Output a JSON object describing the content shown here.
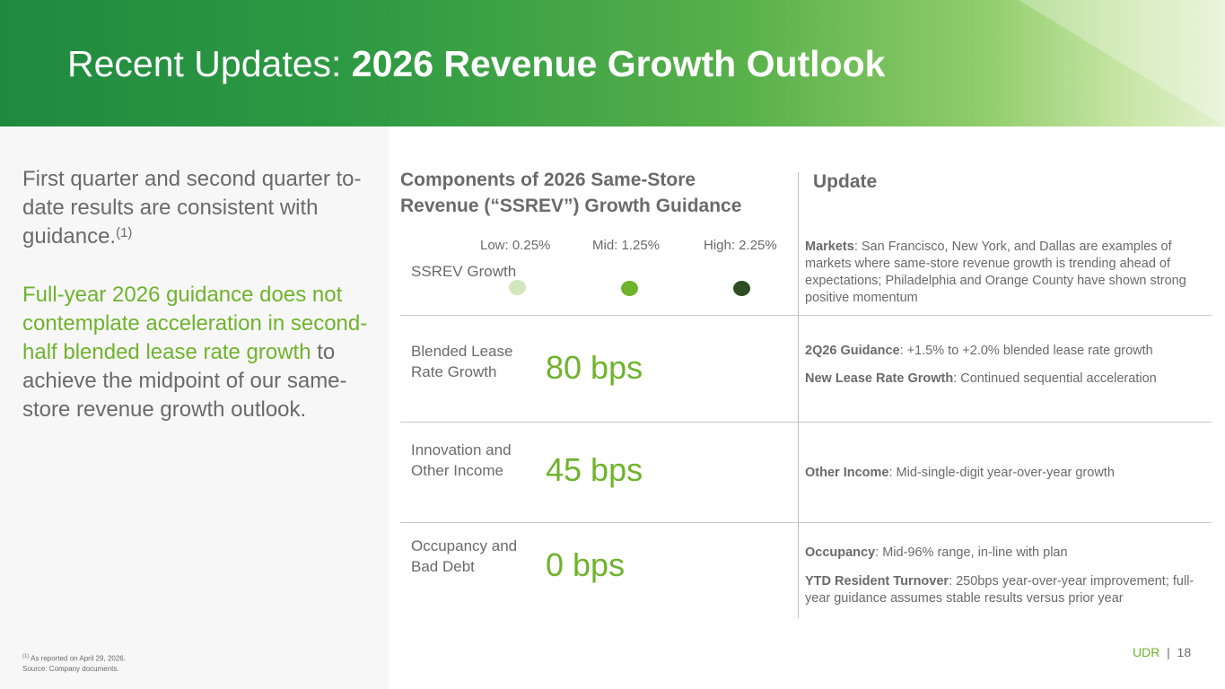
{
  "header": {
    "title_prefix": "Recent Updates: ",
    "title_bold": "2026 Revenue Growth Outlook"
  },
  "left": {
    "intro": "First quarter and second quarter to-date results are consistent with guidance.",
    "intro_note": "(1)",
    "highlight": "Full-year 2026 guidance does not contemplate acceleration in second-half blended lease rate growth",
    "rest": " to achieve the midpoint of our same-store revenue growth outlook.",
    "footnote_marker": "(1)",
    "footnote_line1": " As reported on April 29, 2026.",
    "footnote_line2": "Source: Company documents."
  },
  "table": {
    "heading_line1": "Components of 2026 Same-Store",
    "heading_line2": "Revenue (“SSREV”) Growth Guidance",
    "update_heading": "Update",
    "levels": [
      {
        "label": "Low: 0.25%",
        "color": "#d2e7bd"
      },
      {
        "label": "Mid: 1.25%",
        "color": "#6fb32d"
      },
      {
        "label": "High: 2.25%",
        "color": "#2e4d23"
      }
    ],
    "rows": [
      {
        "label": "SSREV Growth",
        "value": ""
      },
      {
        "label": "Blended Lease Rate Growth",
        "value": "80 bps"
      },
      {
        "label": "Innovation and Other Income",
        "value": "45 bps"
      },
      {
        "label": "Occupancy and Bad Debt",
        "value": "0 bps"
      }
    ],
    "updates": {
      "markets_term": "Markets",
      "markets_text": ": San Francisco, New York, and Dallas are examples of markets where same-store revenue growth is trending ahead of expectations; Philadelphia and Orange County have shown strong positive momentum",
      "guidance_term": "2Q26 Guidance",
      "guidance_text": ": +1.5% to +2.0% blended lease rate growth",
      "newlease_term": "New Lease Rate Growth",
      "newlease_text": ": Continued sequential acceleration",
      "otherinc_term": "Other Income",
      "otherinc_text": ": Mid-single-digit year-over-year growth",
      "occupancy_term": "Occupancy",
      "occupancy_text": ": Mid-96% range, in-line with plan",
      "turnover_term": "YTD Resident Turnover",
      "turnover_text": ": 250bps year-over-year improvement; full-year guidance assumes stable results versus prior year"
    }
  },
  "footer": {
    "brand": "UDR",
    "separator": "|",
    "page": "18"
  }
}
